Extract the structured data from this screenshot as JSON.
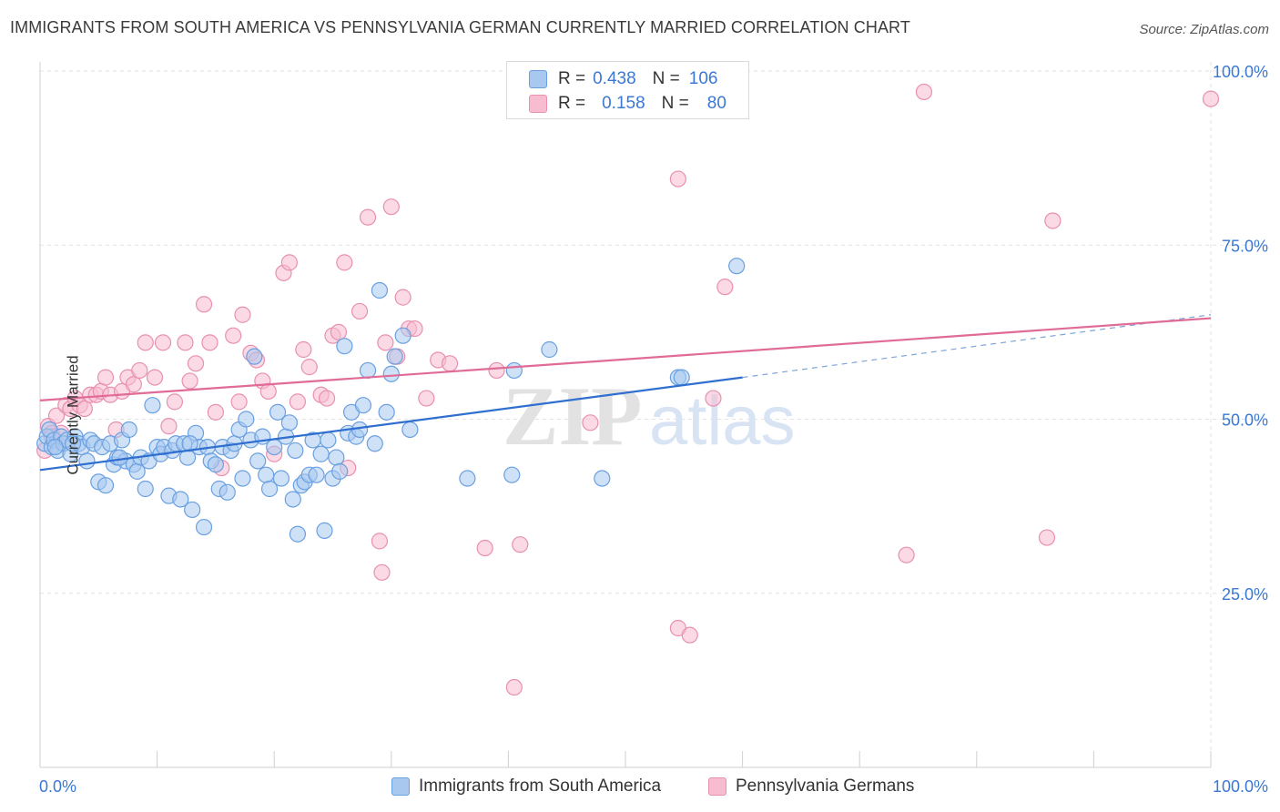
{
  "header": {
    "title": "IMMIGRANTS FROM SOUTH AMERICA VS PENNSYLVANIA GERMAN CURRENTLY MARRIED CORRELATION CHART",
    "source": "Source: ZipAtlas.com"
  },
  "watermark": {
    "part1": "ZIP",
    "part2": "atlas"
  },
  "legend": {
    "rows": [
      {
        "r_label": "R =",
        "r_value": "0.438",
        "n_label": "N =",
        "n_value": "106",
        "color": "#a8c8f0",
        "border": "#6aa0e0"
      },
      {
        "r_label": "R =",
        "r_value": "0.158",
        "n_label": "N =",
        "n_value": "80",
        "color": "#f8bcd0",
        "border": "#e890b0"
      }
    ]
  },
  "bottom_legend": {
    "items": [
      {
        "label": "Immigrants from South America",
        "color": "#a8c8f0",
        "border": "#6aa0e0"
      },
      {
        "label": "Pennsylvania Germans",
        "color": "#f8bcd0",
        "border": "#e890b0"
      }
    ]
  },
  "chart_data": {
    "type": "scatter",
    "title": "IMMIGRANTS FROM SOUTH AMERICA VS PENNSYLVANIA GERMAN CURRENTLY MARRIED CORRELATION CHART",
    "xlabel": "",
    "ylabel": "Currently Married",
    "xlim": [
      0,
      100
    ],
    "ylim": [
      0,
      100
    ],
    "x_tick_labels": [
      "0.0%",
      "100.0%"
    ],
    "y_tick_labels": [
      "25.0%",
      "50.0%",
      "75.0%",
      "100.0%"
    ],
    "y_ticks": [
      25,
      50,
      75,
      100
    ],
    "grid": true,
    "legend_position": "top-center",
    "colors": {
      "blue": "#4a86d8",
      "blue_fill": "#a8c8f0",
      "pink": "#e06090",
      "pink_fill": "#f8bcd0",
      "axis_text": "#3a78d4"
    },
    "series": [
      {
        "name": "Immigrants from South America",
        "r": 0.438,
        "n": 106,
        "trend": {
          "x": [
            0,
            60
          ],
          "y": [
            42.7,
            56.0
          ],
          "dashed_to": [
            100,
            65.0
          ]
        },
        "points": [
          [
            0.4,
            46.5
          ],
          [
            0.6,
            47.5
          ],
          [
            0.8,
            48.5
          ],
          [
            1.0,
            46.0
          ],
          [
            1.2,
            47.0
          ],
          [
            1.5,
            45.5
          ],
          [
            1.8,
            47.5
          ],
          [
            2.0,
            46.5
          ],
          [
            2.3,
            47.0
          ],
          [
            2.6,
            45.0
          ],
          [
            3.0,
            47.5
          ],
          [
            3.3,
            46.5
          ],
          [
            3.6,
            46.0
          ],
          [
            4.0,
            44.0
          ],
          [
            4.3,
            47.0
          ],
          [
            4.6,
            46.5
          ],
          [
            5.0,
            41.0
          ],
          [
            5.3,
            46.0
          ],
          [
            5.6,
            40.5
          ],
          [
            6.0,
            46.5
          ],
          [
            6.3,
            43.5
          ],
          [
            6.6,
            44.5
          ],
          [
            7.0,
            47.0
          ],
          [
            7.3,
            44.0
          ],
          [
            7.6,
            48.5
          ],
          [
            8.0,
            43.5
          ],
          [
            8.3,
            42.5
          ],
          [
            8.6,
            44.5
          ],
          [
            9.0,
            40.0
          ],
          [
            9.3,
            44.0
          ],
          [
            9.6,
            52.0
          ],
          [
            10.0,
            46.0
          ],
          [
            10.3,
            45.0
          ],
          [
            10.6,
            46.0
          ],
          [
            11.0,
            39.0
          ],
          [
            11.3,
            45.5
          ],
          [
            11.6,
            46.5
          ],
          [
            12.0,
            38.5
          ],
          [
            12.3,
            46.5
          ],
          [
            12.6,
            44.5
          ],
          [
            13.0,
            37.0
          ],
          [
            13.3,
            48.0
          ],
          [
            13.6,
            46.0
          ],
          [
            14.0,
            34.5
          ],
          [
            14.3,
            46.0
          ],
          [
            14.6,
            44.0
          ],
          [
            15.0,
            43.5
          ],
          [
            15.3,
            40.0
          ],
          [
            15.6,
            46.0
          ],
          [
            16.0,
            39.5
          ],
          [
            16.3,
            45.5
          ],
          [
            16.6,
            46.5
          ],
          [
            17.0,
            48.5
          ],
          [
            17.3,
            41.5
          ],
          [
            17.6,
            50.0
          ],
          [
            18.0,
            47.0
          ],
          [
            18.3,
            59.0
          ],
          [
            18.6,
            44.0
          ],
          [
            19.0,
            47.5
          ],
          [
            19.3,
            42.0
          ],
          [
            19.6,
            40.0
          ],
          [
            20.0,
            46.0
          ],
          [
            20.3,
            51.0
          ],
          [
            20.6,
            41.5
          ],
          [
            21.0,
            47.5
          ],
          [
            21.3,
            49.5
          ],
          [
            21.6,
            38.5
          ],
          [
            22.0,
            33.5
          ],
          [
            22.3,
            40.5
          ],
          [
            22.6,
            41.0
          ],
          [
            23.0,
            42.0
          ],
          [
            23.3,
            47.0
          ],
          [
            23.6,
            42.0
          ],
          [
            24.0,
            45.0
          ],
          [
            24.3,
            34.0
          ],
          [
            24.6,
            47.0
          ],
          [
            25.0,
            41.5
          ],
          [
            25.3,
            44.5
          ],
          [
            25.6,
            42.5
          ],
          [
            26.0,
            60.5
          ],
          [
            26.3,
            48.0
          ],
          [
            26.6,
            51.0
          ],
          [
            27.0,
            47.5
          ],
          [
            27.3,
            48.5
          ],
          [
            27.6,
            52.0
          ],
          [
            28.0,
            57.0
          ],
          [
            28.6,
            46.5
          ],
          [
            29.0,
            68.5
          ],
          [
            29.6,
            51.0
          ],
          [
            30.0,
            56.5
          ],
          [
            30.3,
            59.0
          ],
          [
            31.0,
            62.0
          ],
          [
            31.6,
            48.5
          ],
          [
            36.5,
            41.5
          ],
          [
            40.5,
            57.0
          ],
          [
            40.3,
            42.0
          ],
          [
            43.5,
            60.0
          ],
          [
            48.0,
            41.5
          ],
          [
            54.5,
            56.0
          ],
          [
            54.8,
            56.0
          ],
          [
            59.5,
            72.0
          ],
          [
            1.3,
            46.0
          ],
          [
            2.8,
            46.5
          ],
          [
            6.8,
            44.5
          ],
          [
            12.8,
            46.5
          ],
          [
            21.8,
            45.5
          ]
        ]
      },
      {
        "name": "Pennsylvania Germans",
        "r": 0.158,
        "n": 80,
        "trend": {
          "x": [
            0,
            100
          ],
          "y": [
            52.7,
            64.5
          ]
        },
        "points": [
          [
            0.4,
            45.5
          ],
          [
            0.7,
            49.0
          ],
          [
            1.0,
            48.0
          ],
          [
            1.4,
            50.5
          ],
          [
            1.8,
            48.0
          ],
          [
            2.2,
            52.0
          ],
          [
            2.6,
            51.5
          ],
          [
            3.0,
            53.0
          ],
          [
            3.4,
            52.0
          ],
          [
            3.8,
            51.5
          ],
          [
            4.3,
            53.5
          ],
          [
            4.8,
            53.5
          ],
          [
            5.2,
            54.0
          ],
          [
            5.6,
            56.0
          ],
          [
            6.0,
            53.5
          ],
          [
            6.5,
            48.5
          ],
          [
            7.0,
            54.0
          ],
          [
            7.5,
            56.0
          ],
          [
            8.0,
            55.0
          ],
          [
            8.5,
            57.0
          ],
          [
            9.0,
            61.0
          ],
          [
            9.8,
            56.0
          ],
          [
            10.5,
            61.0
          ],
          [
            11.0,
            49.0
          ],
          [
            11.5,
            52.5
          ],
          [
            12.4,
            61.0
          ],
          [
            12.8,
            55.5
          ],
          [
            13.3,
            58.0
          ],
          [
            14.0,
            66.5
          ],
          [
            14.5,
            61.0
          ],
          [
            15.0,
            51.0
          ],
          [
            15.5,
            43.0
          ],
          [
            16.5,
            62.0
          ],
          [
            17.0,
            52.5
          ],
          [
            17.3,
            65.0
          ],
          [
            18.0,
            59.5
          ],
          [
            18.5,
            58.5
          ],
          [
            19.0,
            55.5
          ],
          [
            19.5,
            54.0
          ],
          [
            20.0,
            45.0
          ],
          [
            20.8,
            71.0
          ],
          [
            21.3,
            72.5
          ],
          [
            22.0,
            52.5
          ],
          [
            22.5,
            60.0
          ],
          [
            23.0,
            57.5
          ],
          [
            24.0,
            53.5
          ],
          [
            24.5,
            53.0
          ],
          [
            25.0,
            62.0
          ],
          [
            25.5,
            62.5
          ],
          [
            26.0,
            72.5
          ],
          [
            26.3,
            43.0
          ],
          [
            27.3,
            65.5
          ],
          [
            28.0,
            79.0
          ],
          [
            29.0,
            32.5
          ],
          [
            29.2,
            28.0
          ],
          [
            29.5,
            61.0
          ],
          [
            30.0,
            80.5
          ],
          [
            30.5,
            59.0
          ],
          [
            31.0,
            67.5
          ],
          [
            31.5,
            63.0
          ],
          [
            32.0,
            63.0
          ],
          [
            33.0,
            53.0
          ],
          [
            34.0,
            58.5
          ],
          [
            35.0,
            58.0
          ],
          [
            38.0,
            31.5
          ],
          [
            39.0,
            57.0
          ],
          [
            40.5,
            11.5
          ],
          [
            41.0,
            32.0
          ],
          [
            47.0,
            49.5
          ],
          [
            54.5,
            84.5
          ],
          [
            54.5,
            20.0
          ],
          [
            55.5,
            19.0
          ],
          [
            57.5,
            53.0
          ],
          [
            58.5,
            69.0
          ],
          [
            74.0,
            30.5
          ],
          [
            75.5,
            97.0
          ],
          [
            86.0,
            33.0
          ],
          [
            86.5,
            78.5
          ],
          [
            100.0,
            96.0
          ],
          [
            1.0,
            47.5
          ]
        ]
      }
    ]
  }
}
